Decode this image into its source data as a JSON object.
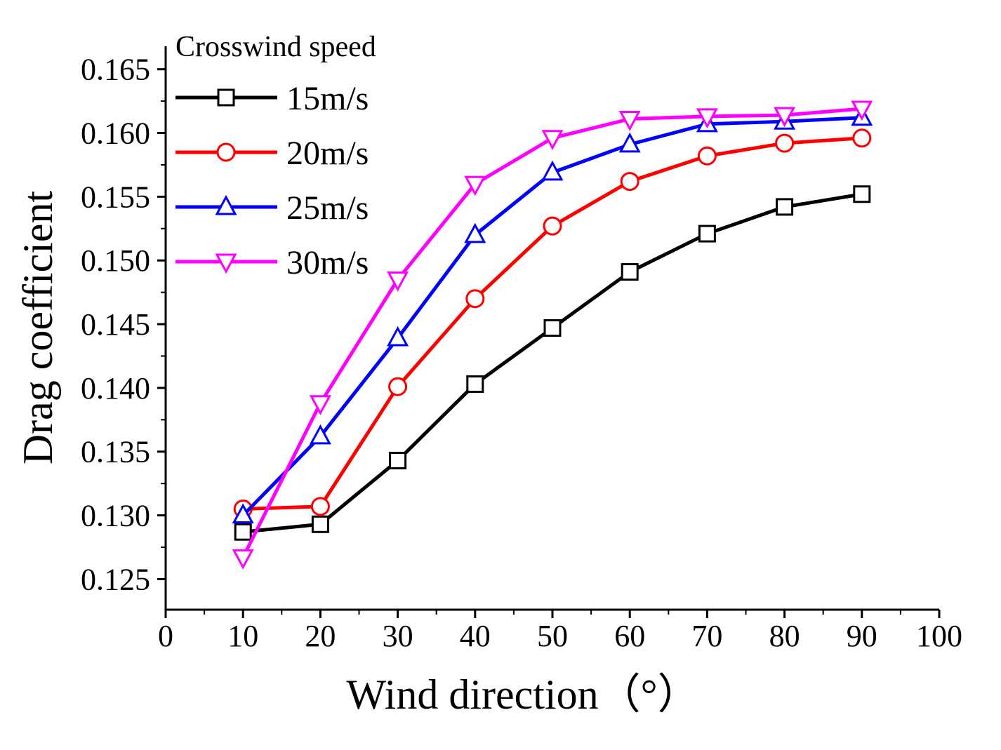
{
  "chart_data": {
    "type": "line",
    "title": "",
    "xlabel": "Wind direction（°）",
    "ylabel": "Drag coefficient",
    "xlim": [
      0,
      100
    ],
    "ylim": [
      0.1226,
      0.1668
    ],
    "x_ticks": [
      0,
      10,
      20,
      30,
      40,
      50,
      60,
      70,
      80,
      90,
      100
    ],
    "x_tick_labels": [
      "0",
      "10",
      "20",
      "30",
      "40",
      "50",
      "60",
      "70",
      "80",
      "90",
      "100"
    ],
    "y_ticks": [
      0.125,
      0.13,
      0.135,
      0.14,
      0.145,
      0.15,
      0.155,
      0.16,
      0.165
    ],
    "y_tick_labels": [
      "0.125",
      "0.130",
      "0.135",
      "0.140",
      "0.145",
      "0.150",
      "0.155",
      "0.160",
      "0.165"
    ],
    "legend_title": "Crosswind speed",
    "legend_position": "top-left",
    "x": [
      10,
      20,
      30,
      40,
      50,
      60,
      70,
      80,
      90
    ],
    "series": [
      {
        "name": "15m/s",
        "color": "#000000",
        "marker": "square",
        "values": [
          0.1287,
          0.1293,
          0.1343,
          0.1403,
          0.1447,
          0.1491,
          0.1521,
          0.1542,
          0.1552
        ]
      },
      {
        "name": "20m/s",
        "color": "#ff0000",
        "marker": "circle",
        "values": [
          0.1305,
          0.1307,
          0.1401,
          0.147,
          0.1527,
          0.1562,
          0.1582,
          0.1592,
          0.1596
        ]
      },
      {
        "name": "25m/s",
        "color": "#0000ff",
        "marker": "triangle-up",
        "values": [
          0.13,
          0.1362,
          0.1439,
          0.152,
          0.1569,
          0.1591,
          0.1607,
          0.1609,
          0.1612
        ]
      },
      {
        "name": "30m/s",
        "color": "#ff00ff",
        "marker": "triangle-down",
        "values": [
          0.1267,
          0.1388,
          0.1485,
          0.156,
          0.1596,
          0.1611,
          0.1613,
          0.1614,
          0.1619
        ]
      }
    ]
  }
}
